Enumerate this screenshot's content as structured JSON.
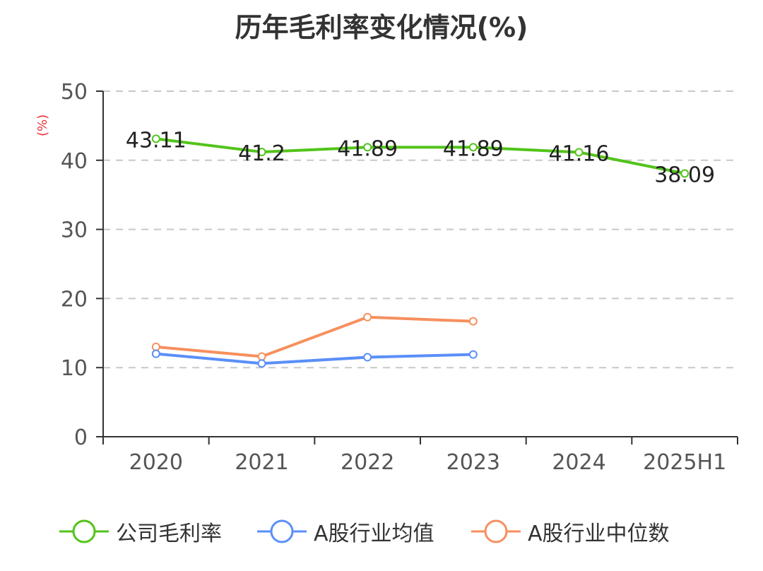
{
  "chart_data": {
    "type": "line",
    "title": "历年毛利率变化情况(%)",
    "y_unit": "(%)",
    "categories": [
      "2020",
      "2021",
      "2022",
      "2023",
      "2024",
      "2025H1"
    ],
    "ylim": [
      0,
      50
    ],
    "y_ticks": [
      "0",
      "10",
      "20",
      "30",
      "40",
      "50"
    ],
    "grid": true,
    "legend_position": "bottom",
    "series": [
      {
        "name": "公司毛利率",
        "color": "#52c41a",
        "values": [
          43.11,
          41.2,
          41.89,
          41.89,
          41.16,
          38.09
        ],
        "labels": [
          "43.11",
          "41.2",
          "41.89",
          "41.89",
          "41.16",
          "38.09"
        ],
        "show_labels": true
      },
      {
        "name": "A股行业均值",
        "color": "#5b8ff9",
        "values": [
          12.0,
          10.6,
          11.5,
          11.9,
          null,
          null
        ],
        "show_labels": false
      },
      {
        "name": "A股行业中位数",
        "color": "#f6905e",
        "values": [
          13.0,
          11.6,
          17.3,
          16.7,
          null,
          null
        ],
        "show_labels": false
      }
    ]
  }
}
